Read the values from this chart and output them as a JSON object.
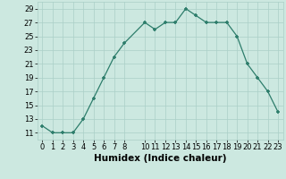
{
  "x": [
    0,
    1,
    2,
    3,
    4,
    5,
    6,
    7,
    8,
    10,
    11,
    12,
    13,
    14,
    15,
    16,
    17,
    18,
    19,
    20,
    21,
    22,
    23
  ],
  "y": [
    12,
    11,
    11,
    11,
    13,
    16,
    19,
    22,
    24,
    27,
    26,
    27,
    27,
    29,
    28,
    27,
    27,
    27,
    25,
    21,
    19,
    17,
    14
  ],
  "xlabel": "Humidex (Indice chaleur)",
  "xlim": [
    -0.5,
    23.5
  ],
  "ylim": [
    10,
    30
  ],
  "yticks": [
    11,
    13,
    15,
    17,
    19,
    21,
    23,
    25,
    27,
    29
  ],
  "xticks": [
    0,
    1,
    2,
    3,
    4,
    5,
    6,
    7,
    8,
    10,
    11,
    12,
    13,
    14,
    15,
    16,
    17,
    18,
    19,
    20,
    21,
    22,
    23
  ],
  "line_color": "#2d7d6b",
  "bg_color": "#cce8e0",
  "grid_color": "#aacfc7",
  "xlabel_fontsize": 7.5,
  "tick_fontsize": 6.0
}
